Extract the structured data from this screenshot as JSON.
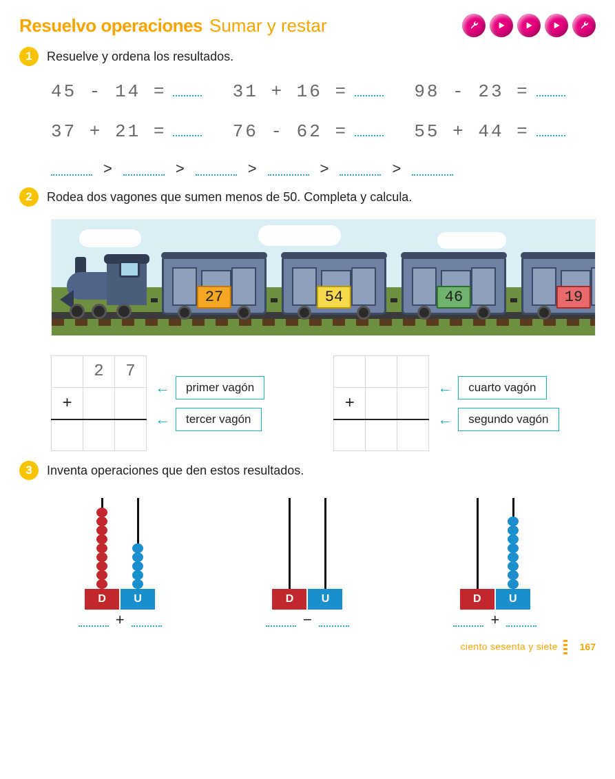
{
  "colors": {
    "title_main": "#f6a500",
    "title_sub": "#f6a500",
    "bubble_bg": "#f8c300",
    "bubble_fg": "#ffffff",
    "badge_bg": "#e6007e",
    "badge_glyph": "#ffffff",
    "blank_underline": "#2aa7c9",
    "arrow": "#16b4bd",
    "tag_border": "#16b4bd",
    "baseD": "#c1272d",
    "baseU": "#1b8fce",
    "beadD": "#c1272d",
    "beadU": "#1b8fce",
    "footer": "#f6a500",
    "sky": "#d9eef5",
    "eq_text": "#6a6a6a"
  },
  "header": {
    "title_main": "Resuelvo operaciones",
    "title_sub": "Sumar y restar",
    "badges": [
      "wrench",
      "play",
      "play",
      "play",
      "wrench"
    ]
  },
  "ex1": {
    "num": "1",
    "prompt": "Resuelve y ordena los resultados.",
    "equations": [
      "45 - 14 =",
      "31 + 16 =",
      "98 - 23 =",
      "37 + 21 =",
      "76 - 62 =",
      "55 + 44 ="
    ],
    "order_sep": ">"
  },
  "ex2": {
    "num": "2",
    "prompt": "Rodea dos vagones que sumen menos de 50. Completa y calcula.",
    "wagons": [
      {
        "value": "27",
        "plate_bg": "#f5a623",
        "plate_border": "#c47800"
      },
      {
        "value": "54",
        "plate_bg": "#f7d94c",
        "plate_border": "#b89b00"
      },
      {
        "value": "46",
        "plate_bg": "#6fb36f",
        "plate_border": "#2f6d2f"
      },
      {
        "value": "19",
        "plate_bg": "#e86a6a",
        "plate_border": "#a02c2c"
      }
    ],
    "box_left": {
      "row1": [
        "",
        "2",
        "7"
      ],
      "label1": "primer vagón",
      "label2": "tercer vagón",
      "sign": "+"
    },
    "box_right": {
      "row1": [
        "",
        "",
        ""
      ],
      "label1": "cuarto vagón",
      "label2": "segundo vagón",
      "sign": "+"
    }
  },
  "ex3": {
    "num": "3",
    "prompt": "Inventa operaciones que den estos resultados.",
    "labels": {
      "D": "D",
      "U": "U"
    },
    "items": [
      {
        "D": 9,
        "U": 5,
        "op": "+"
      },
      {
        "D": 0,
        "U": 0,
        "op": "−"
      },
      {
        "D": 0,
        "U": 8,
        "op": "+"
      }
    ]
  },
  "footer": {
    "text": "ciento sesenta y siete",
    "page": "167"
  }
}
